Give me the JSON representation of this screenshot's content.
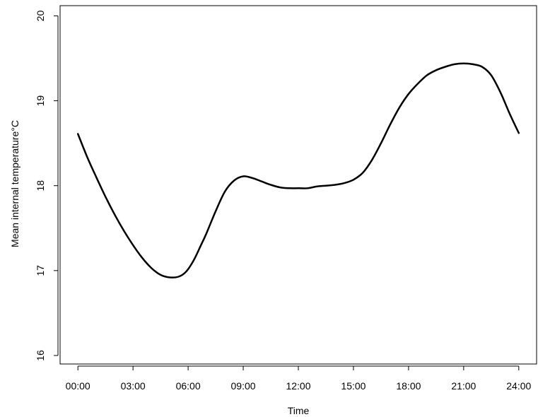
{
  "chart_data": {
    "type": "line",
    "title": "",
    "xlabel": "Time",
    "ylabel": "Mean internal temperature°C",
    "x_tick_labels": [
      "00:00",
      "03:00",
      "06:00",
      "09:00",
      "12:00",
      "15:00",
      "18:00",
      "21:00",
      "24:00"
    ],
    "x_tick_values": [
      0,
      3,
      6,
      9,
      12,
      15,
      18,
      21,
      24
    ],
    "y_ticks": [
      16,
      17,
      18,
      19,
      20
    ],
    "xlim": [
      -0.97,
      24.97
    ],
    "ylim": [
      15.9,
      20.12
    ],
    "grid": false,
    "line_color": "#000000",
    "series": [
      {
        "x": [
          0,
          0.5,
          1,
          1.5,
          2,
          2.5,
          3,
          3.5,
          4,
          4.5,
          5,
          5.5,
          5.9,
          6.3,
          6.7,
          7,
          7.5,
          8,
          8.5,
          9,
          9.5,
          10,
          10.5,
          11,
          11.5,
          12,
          12.5,
          13,
          13.5,
          14,
          14.5,
          15,
          15.5,
          16,
          16.5,
          17,
          17.5,
          18,
          18.5,
          19,
          19.5,
          20,
          20.5,
          21,
          21.5,
          22,
          22.5,
          23,
          23.5,
          24
        ],
        "y": [
          18.61,
          18.34,
          18.1,
          17.87,
          17.66,
          17.47,
          17.3,
          17.15,
          17.03,
          16.95,
          16.92,
          16.93,
          16.99,
          17.12,
          17.3,
          17.44,
          17.7,
          17.93,
          18.06,
          18.11,
          18.09,
          18.05,
          18.01,
          17.98,
          17.97,
          17.97,
          17.97,
          17.99,
          18.0,
          18.01,
          18.03,
          18.07,
          18.15,
          18.3,
          18.5,
          18.72,
          18.92,
          19.08,
          19.2,
          19.3,
          19.36,
          19.4,
          19.43,
          19.44,
          19.43,
          19.4,
          19.3,
          19.1,
          18.85,
          18.62
        ]
      }
    ]
  }
}
